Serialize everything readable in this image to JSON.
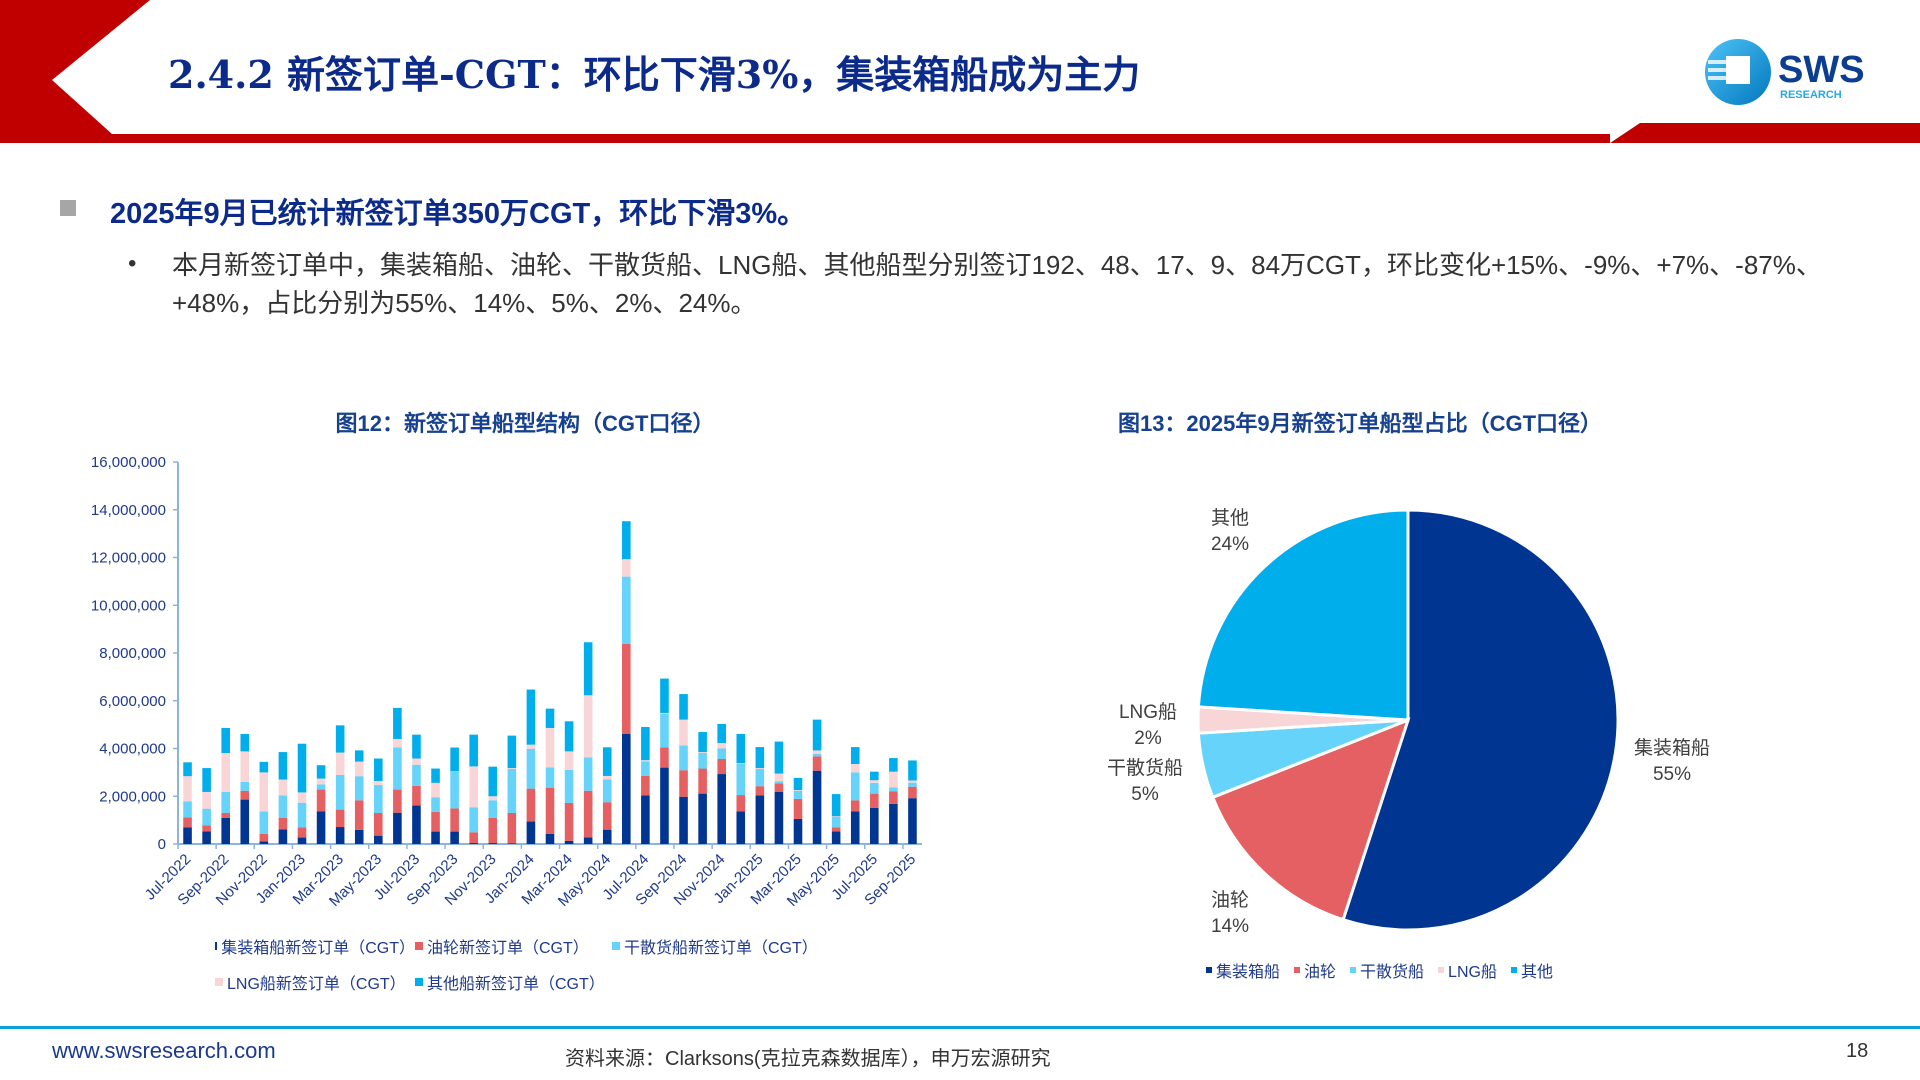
{
  "header": {
    "title": "2.4.2 新签订单-CGT：环比下滑3%，集装箱船成为主力",
    "logo_text": "SWS",
    "logo_sub": "RESEARCH"
  },
  "content": {
    "heading": "2025年9月已统计新签订单350万CGT，环比下滑3%。",
    "paragraph": "本月新签订单中，集装箱船、油轮、干散货船、LNG船、其他船型分别签订192、48、17、9、84万CGT，环比变化+15%、-9%、+7%、-87%、+48%，占比分别为55%、14%、5%、2%、24%。"
  },
  "colors": {
    "container": "#003592",
    "tanker": "#e46062",
    "bulk": "#66d3fb",
    "lng": "#f8d6d8",
    "other": "#00aeeb",
    "title": "#0b2a8a",
    "red": "#c00000"
  },
  "chart_data": [
    {
      "type": "bar",
      "stacked": true,
      "title": "图12：新签订单船型结构（CGT口径）",
      "ylim": [
        0,
        16000000
      ],
      "yticks": [
        "0",
        "2,000,000",
        "4,000,000",
        "6,000,000",
        "8,000,000",
        "10,000,000",
        "12,000,000",
        "14,000,000",
        "16,000,000"
      ],
      "categories": [
        "Jul-2022",
        "Aug-2022",
        "Sep-2022",
        "Oct-2022",
        "Nov-2022",
        "Dec-2022",
        "Jan-2023",
        "Feb-2023",
        "Mar-2023",
        "Apr-2023",
        "May-2023",
        "Jun-2023",
        "Jul-2023",
        "Aug-2023",
        "Sep-2023",
        "Oct-2023",
        "Nov-2023",
        "Dec-2023",
        "Jan-2024",
        "Feb-2024",
        "Mar-2024",
        "Apr-2024",
        "May-2024",
        "Jun-2024",
        "Jul-2024",
        "Aug-2024",
        "Sep-2024",
        "Oct-2024",
        "Nov-2024",
        "Dec-2024",
        "Jan-2025",
        "Feb-2025",
        "Mar-2025",
        "Apr-2025",
        "May-2025",
        "Jun-2025",
        "Jul-2025",
        "Aug-2025",
        "Sep-2025"
      ],
      "xtick_labels": [
        "Jul-2022",
        "Sep-2022",
        "Nov-2022",
        "Jan-2023",
        "Mar-2023",
        "May-2023",
        "Jul-2023",
        "Sep-2023",
        "Nov-2023",
        "Jan-2024",
        "Mar-2024",
        "May-2024",
        "Jul-2024",
        "Sep-2024",
        "Nov-2024",
        "Jan-2025",
        "Mar-2025",
        "May-2025",
        "Jul-2025",
        "Sep-2025"
      ],
      "series": [
        {
          "name": "集装箱船新签订单（CGT）",
          "key": "container",
          "values": [
            700000,
            530000,
            1090000,
            1860000,
            110000,
            610000,
            270000,
            1370000,
            710000,
            590000,
            350000,
            1310000,
            1610000,
            520000,
            520000,
            40000,
            40000,
            30000,
            940000,
            420000,
            130000,
            280000,
            600000,
            4620000,
            2040000,
            3200000,
            1980000,
            2110000,
            2930000,
            1370000,
            2040000,
            2190000,
            1050000,
            3070000,
            530000,
            1370000,
            1510000,
            1680000,
            1920000
          ]
        },
        {
          "name": "油轮新签订单（CGT）",
          "key": "tanker",
          "values": [
            420000,
            250000,
            210000,
            370000,
            320000,
            480000,
            430000,
            910000,
            730000,
            1240000,
            950000,
            970000,
            830000,
            830000,
            970000,
            450000,
            1060000,
            1270000,
            1380000,
            1940000,
            1590000,
            1950000,
            1150000,
            3770000,
            810000,
            850000,
            1110000,
            1050000,
            630000,
            680000,
            380000,
            350000,
            840000,
            600000,
            170000,
            460000,
            600000,
            530000,
            480000
          ]
        },
        {
          "name": "干散货船新签订单（CGT）",
          "key": "bulk",
          "values": [
            670000,
            700000,
            880000,
            370000,
            940000,
            940000,
            1030000,
            220000,
            1450000,
            1010000,
            1170000,
            1770000,
            880000,
            610000,
            1530000,
            1050000,
            730000,
            1840000,
            1660000,
            850000,
            1390000,
            1400000,
            950000,
            2810000,
            610000,
            1410000,
            1040000,
            650000,
            440000,
            1320000,
            720000,
            90000,
            340000,
            110000,
            430000,
            1170000,
            450000,
            160000,
            170000
          ]
        },
        {
          "name": "LNG船新签订单（CGT）",
          "key": "lng",
          "values": [
            1050000,
            700000,
            1630000,
            1280000,
            1630000,
            670000,
            430000,
            240000,
            940000,
            610000,
            170000,
            350000,
            260000,
            600000,
            20000,
            1710000,
            170000,
            40000,
            180000,
            1650000,
            770000,
            2600000,
            150000,
            730000,
            50000,
            30000,
            1080000,
            40000,
            230000,
            20000,
            40000,
            320000,
            30000,
            140000,
            30000,
            350000,
            110000,
            660000,
            90000
          ]
        },
        {
          "name": "其他船新签订单（CGT）",
          "key": "other",
          "values": [
            580000,
            1000000,
            1050000,
            730000,
            440000,
            1150000,
            2040000,
            560000,
            1140000,
            470000,
            940000,
            1300000,
            1000000,
            600000,
            1000000,
            1330000,
            1240000,
            1360000,
            2310000,
            810000,
            1260000,
            2220000,
            1200000,
            1590000,
            1390000,
            1440000,
            1070000,
            840000,
            800000,
            1220000,
            880000,
            1340000,
            510000,
            1290000,
            930000,
            710000,
            360000,
            570000,
            840000
          ]
        }
      ]
    },
    {
      "type": "pie",
      "title": "图13：2025年9月新签订单船型占比（CGT口径）",
      "slices": [
        {
          "label": "集装箱船",
          "value": 55,
          "pct": "55%",
          "key": "container"
        },
        {
          "label": "油轮",
          "value": 14,
          "pct": "14%",
          "key": "tanker"
        },
        {
          "label": "干散货船",
          "value": 5,
          "pct": "5%",
          "key": "bulk"
        },
        {
          "label": "LNG船",
          "value": 2,
          "pct": "2%",
          "key": "lng"
        },
        {
          "label": "其他",
          "value": 24,
          "pct": "24%",
          "key": "other"
        }
      ],
      "legend": [
        "集装箱船",
        "油轮",
        "干散货船",
        "LNG船",
        "其他"
      ],
      "legend_placement": "bottom"
    }
  ],
  "footer": {
    "url": "www.swsresearch.com",
    "source": "资料来源：Clarksons(克拉克森数据库），申万宏源研究",
    "page": "18"
  }
}
